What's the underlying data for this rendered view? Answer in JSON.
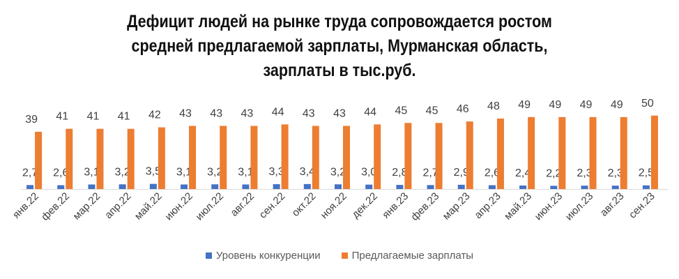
{
  "chart_data": {
    "type": "bar",
    "title_lines": [
      "Дефицит людей на рынке труда сопровождается ростом",
      "средней предлагаемой зарплаты, Мурманская область,",
      "зарплаты в тыс.руб."
    ],
    "categories": [
      "янв.22",
      "фев.22",
      "мар.22",
      "апр.22",
      "май.22",
      "июн.22",
      "июл.22",
      "авг.22",
      "сен.22",
      "окт.22",
      "ноя.22",
      "дек.22",
      "янв.23",
      "фев.23",
      "мар.23",
      "апр.23",
      "май.23",
      "июн.23",
      "июл.23",
      "авг.23",
      "сен.23"
    ],
    "series": [
      {
        "name": "Уровень конкуренции",
        "color": "#4472C4",
        "values": [
          2.7,
          2.6,
          3.1,
          3.2,
          3.5,
          3.1,
          3.2,
          3.1,
          3.3,
          3.4,
          3.2,
          3.0,
          2.8,
          2.7,
          2.9,
          2.6,
          2.4,
          2.2,
          2.3,
          2.3,
          2.5
        ],
        "labels": [
          "2,7",
          "2,6",
          "3,1",
          "3,2",
          "3,5",
          "3,1",
          "3,2",
          "3,1",
          "3,3",
          "3,4",
          "3,2",
          "3,0",
          "2,8",
          "2,7",
          "2,9",
          "2,6",
          "2,4",
          "2,2",
          "2,3",
          "2,3",
          "2,5"
        ]
      },
      {
        "name": "Предлагаемые зарплаты",
        "color": "#ED7D31",
        "values": [
          39,
          41,
          41,
          41,
          42,
          43,
          43,
          43,
          44,
          43,
          43,
          44,
          45,
          45,
          46,
          48,
          49,
          49,
          49,
          49,
          50
        ],
        "labels": [
          "39",
          "41",
          "41",
          "41",
          "42",
          "43",
          "43",
          "43",
          "44",
          "43",
          "43",
          "44",
          "45",
          "45",
          "46",
          "48",
          "49",
          "49",
          "49",
          "49",
          "50"
        ]
      }
    ],
    "grid": false,
    "legend_position": "bottom"
  }
}
